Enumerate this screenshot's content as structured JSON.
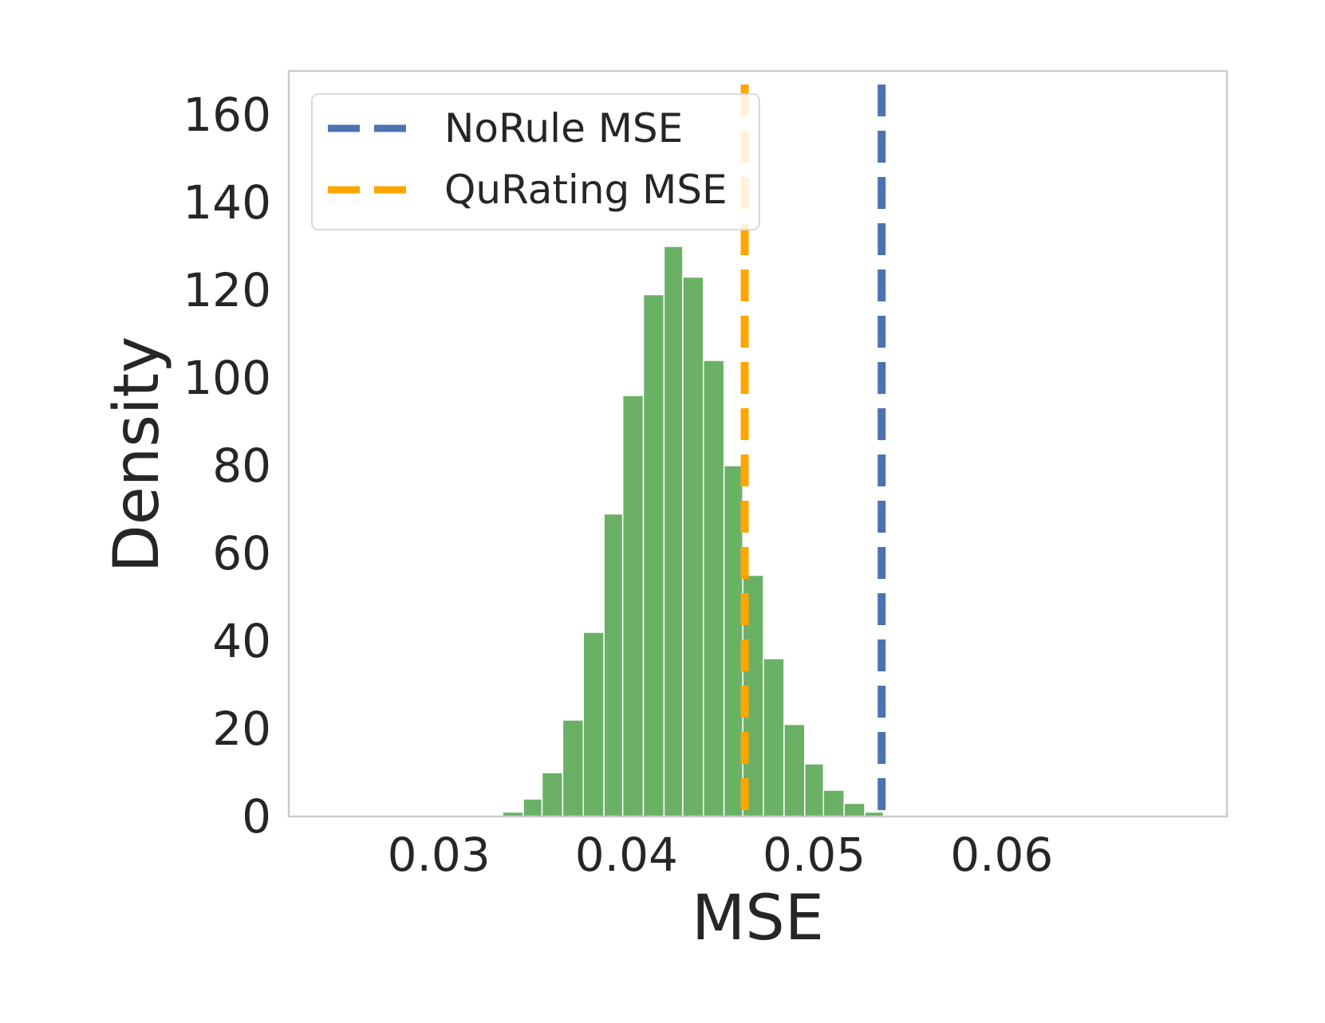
{
  "chart_data": {
    "type": "histogram",
    "xlabel": "MSE",
    "ylabel": "Density",
    "xlim": [
      0.022,
      0.072
    ],
    "ylim": [
      0,
      170
    ],
    "xticks": [
      0.03,
      0.04,
      0.05,
      0.06
    ],
    "xtick_labels": [
      "0.03",
      "0.04",
      "0.05",
      "0.06"
    ],
    "yticks": [
      0,
      20,
      40,
      60,
      80,
      100,
      120,
      140,
      160
    ],
    "ytick_labels": [
      "0",
      "20",
      "40",
      "60",
      "80",
      "100",
      "120",
      "140",
      "160"
    ],
    "grid": false,
    "legend_position": "top-left",
    "bar_color": "#6ab166",
    "bins": [
      {
        "x0": 0.0334,
        "x1": 0.0345,
        "density": 1
      },
      {
        "x0": 0.0345,
        "x1": 0.0355,
        "density": 4
      },
      {
        "x0": 0.0355,
        "x1": 0.0366,
        "density": 10
      },
      {
        "x0": 0.0366,
        "x1": 0.0377,
        "density": 22
      },
      {
        "x0": 0.0377,
        "x1": 0.0388,
        "density": 42
      },
      {
        "x0": 0.0388,
        "x1": 0.0398,
        "density": 69
      },
      {
        "x0": 0.0398,
        "x1": 0.0409,
        "density": 96
      },
      {
        "x0": 0.0409,
        "x1": 0.042,
        "density": 119
      },
      {
        "x0": 0.042,
        "x1": 0.043,
        "density": 130
      },
      {
        "x0": 0.043,
        "x1": 0.0441,
        "density": 123
      },
      {
        "x0": 0.0441,
        "x1": 0.0452,
        "density": 104
      },
      {
        "x0": 0.0452,
        "x1": 0.0462,
        "density": 80
      },
      {
        "x0": 0.0462,
        "x1": 0.0473,
        "density": 55
      },
      {
        "x0": 0.0473,
        "x1": 0.0484,
        "density": 36
      },
      {
        "x0": 0.0484,
        "x1": 0.0495,
        "density": 21
      },
      {
        "x0": 0.0495,
        "x1": 0.0505,
        "density": 12
      },
      {
        "x0": 0.0505,
        "x1": 0.0516,
        "density": 6
      },
      {
        "x0": 0.0516,
        "x1": 0.0527,
        "density": 3
      },
      {
        "x0": 0.0527,
        "x1": 0.0537,
        "density": 1
      },
      {
        "x0": 0.0537,
        "x1": 0.0548,
        "density": 0.3
      }
    ],
    "reference_lines": [
      {
        "name": "NoRule MSE",
        "x": 0.0536,
        "color": "#4c72b0",
        "style": "dashed"
      },
      {
        "name": "QuRating MSE",
        "x": 0.0463,
        "color": "#ffa500",
        "style": "dashed"
      }
    ]
  }
}
